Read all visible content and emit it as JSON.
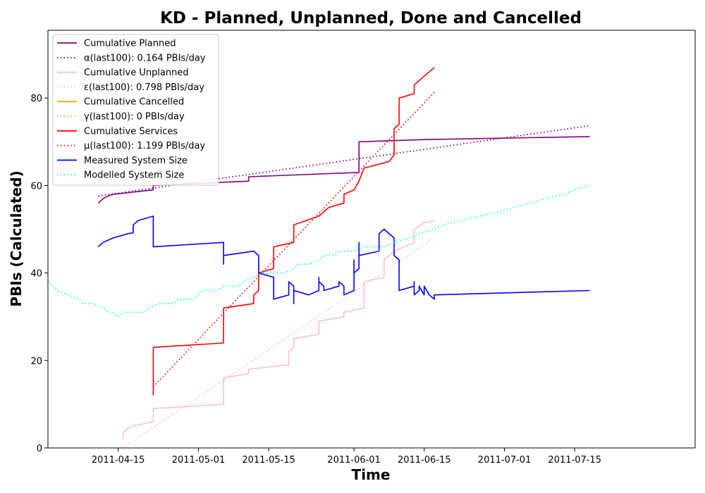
{
  "chart_data": {
    "type": "line",
    "title": "KD - Planned, Unplanned, Done  and Cancelled",
    "xlabel": "Time",
    "ylabel": "PBIs (Calculated)",
    "xlim": [
      "2011-04-01",
      "2011-08-08"
    ],
    "ylim": [
      0,
      95.5
    ],
    "x_ticks": [
      "2011-04-15",
      "2011-05-01",
      "2011-05-15",
      "2011-06-01",
      "2011-06-15",
      "2011-07-01",
      "2011-07-15"
    ],
    "y_ticks": [
      0,
      20,
      40,
      60,
      80
    ],
    "grid": false,
    "legend_position": "upper-left",
    "series": [
      {
        "name": "Cumulative Planned",
        "color": "#800080",
        "style": "solid",
        "points": [
          [
            "2011-04-11",
            56
          ],
          [
            "2011-04-12",
            57
          ],
          [
            "2011-04-13",
            57.6
          ],
          [
            "2011-04-14",
            58
          ],
          [
            "2011-04-22",
            59
          ],
          [
            "2011-04-22",
            60
          ],
          [
            "2011-05-11",
            61
          ],
          [
            "2011-05-11",
            62
          ],
          [
            "2011-06-02",
            63
          ],
          [
            "2011-06-02",
            70
          ],
          [
            "2011-06-15",
            70.5
          ],
          [
            "2011-07-18",
            71.2
          ]
        ]
      },
      {
        "name": "α(last100): 0.164 PBIs/day",
        "color": "#800080",
        "style": "dotted",
        "points": [
          [
            "2011-04-11",
            57.6
          ],
          [
            "2011-07-18",
            73.7
          ]
        ]
      },
      {
        "name": "Cumulative Unplanned",
        "color": "#ffc0cb",
        "style": "solid",
        "points": [
          [
            "2011-04-16",
            2
          ],
          [
            "2011-04-16",
            3.5
          ],
          [
            "2011-04-17",
            4.5
          ],
          [
            "2011-04-18",
            5
          ],
          [
            "2011-04-22",
            6
          ],
          [
            "2011-04-22",
            9
          ],
          [
            "2011-05-06",
            10
          ],
          [
            "2011-05-06",
            16
          ],
          [
            "2011-05-11",
            17
          ],
          [
            "2011-05-11",
            18
          ],
          [
            "2011-05-19",
            19
          ],
          [
            "2011-05-19",
            22
          ],
          [
            "2011-05-20",
            23
          ],
          [
            "2011-05-20",
            25
          ],
          [
            "2011-05-25",
            26
          ],
          [
            "2011-05-25",
            29
          ],
          [
            "2011-05-30",
            30
          ],
          [
            "2011-05-30",
            31
          ],
          [
            "2011-06-03",
            32
          ],
          [
            "2011-06-03",
            38
          ],
          [
            "2011-06-07",
            39
          ],
          [
            "2011-06-07",
            43
          ],
          [
            "2011-06-08",
            44
          ],
          [
            "2011-06-09",
            45
          ],
          [
            "2011-06-13",
            47
          ],
          [
            "2011-06-13",
            50
          ],
          [
            "2011-06-15",
            51.5
          ],
          [
            "2011-06-17",
            52
          ]
        ]
      },
      {
        "name": "ε(last100): 0.798 PBIs/day",
        "color": "#ffc0cb",
        "style": "dotted",
        "points": [
          [
            "2011-04-16",
            0
          ],
          [
            "2011-06-17",
            48
          ]
        ]
      },
      {
        "name": "Cumulative Cancelled",
        "color": "#ffa500",
        "style": "solid",
        "points": []
      },
      {
        "name": "γ(last100): 0 PBIs/day",
        "color": "#ffa500",
        "style": "dotted",
        "points": []
      },
      {
        "name": "Cumulative Services",
        "color": "#ff0000",
        "style": "solid",
        "points": [
          [
            "2011-04-22",
            12
          ],
          [
            "2011-04-22",
            20
          ],
          [
            "2011-04-22",
            23
          ],
          [
            "2011-05-06",
            24
          ],
          [
            "2011-05-06",
            31
          ],
          [
            "2011-05-06",
            32
          ],
          [
            "2011-05-12",
            33
          ],
          [
            "2011-05-12",
            35
          ],
          [
            "2011-05-13",
            36
          ],
          [
            "2011-05-13",
            40
          ],
          [
            "2011-05-16",
            41
          ],
          [
            "2011-05-16",
            46
          ],
          [
            "2011-05-20",
            47
          ],
          [
            "2011-05-20",
            51
          ],
          [
            "2011-05-25",
            53
          ],
          [
            "2011-05-27",
            55
          ],
          [
            "2011-05-30",
            56
          ],
          [
            "2011-05-30",
            58
          ],
          [
            "2011-06-01",
            59
          ],
          [
            "2011-06-02",
            61
          ],
          [
            "2011-06-03",
            64
          ],
          [
            "2011-06-08",
            65.5
          ],
          [
            "2011-06-09",
            67
          ],
          [
            "2011-06-09",
            73
          ],
          [
            "2011-06-10",
            74
          ],
          [
            "2011-06-10",
            80
          ],
          [
            "2011-06-13",
            81
          ],
          [
            "2011-06-13",
            83
          ],
          [
            "2011-06-15",
            85
          ],
          [
            "2011-06-17",
            87
          ]
        ]
      },
      {
        "name": "μ(last100): 1.199 PBIs/day",
        "color": "#ff0000",
        "style": "dotted",
        "points": [
          [
            "2011-04-22",
            14
          ],
          [
            "2011-06-17",
            81.3
          ]
        ]
      },
      {
        "name": "Measured System Size",
        "color": "#0000ff",
        "style": "solid",
        "points": [
          [
            "2011-04-11",
            46
          ],
          [
            "2011-04-12",
            47
          ],
          [
            "2011-04-14",
            48
          ],
          [
            "2011-04-17",
            49
          ],
          [
            "2011-04-18",
            49.2
          ],
          [
            "2011-04-18",
            51
          ],
          [
            "2011-04-19",
            52
          ],
          [
            "2011-04-22",
            53
          ],
          [
            "2011-04-22",
            46
          ],
          [
            "2011-05-06",
            47
          ],
          [
            "2011-05-06",
            42
          ],
          [
            "2011-05-06",
            44
          ],
          [
            "2011-05-12",
            45
          ],
          [
            "2011-05-13",
            44
          ],
          [
            "2011-05-13",
            40
          ],
          [
            "2011-05-16",
            39
          ],
          [
            "2011-05-16",
            34
          ],
          [
            "2011-05-19",
            35
          ],
          [
            "2011-05-19",
            38
          ],
          [
            "2011-05-20",
            37
          ],
          [
            "2011-05-20",
            33
          ],
          [
            "2011-05-20",
            36
          ],
          [
            "2011-05-23",
            35
          ],
          [
            "2011-05-25",
            36
          ],
          [
            "2011-05-25",
            39
          ],
          [
            "2011-05-25",
            38
          ],
          [
            "2011-05-26",
            37
          ],
          [
            "2011-05-26",
            36
          ],
          [
            "2011-05-29",
            37
          ],
          [
            "2011-05-29",
            38
          ],
          [
            "2011-05-30",
            37
          ],
          [
            "2011-05-30",
            35
          ],
          [
            "2011-06-01",
            36
          ],
          [
            "2011-06-01",
            43
          ],
          [
            "2011-06-01",
            40
          ],
          [
            "2011-06-02",
            41
          ],
          [
            "2011-06-02",
            44
          ],
          [
            "2011-06-02",
            47
          ],
          [
            "2011-06-02",
            44
          ],
          [
            "2011-06-06",
            45
          ],
          [
            "2011-06-06",
            49
          ],
          [
            "2011-06-07",
            50
          ],
          [
            "2011-06-09",
            48
          ],
          [
            "2011-06-09",
            44
          ],
          [
            "2011-06-10",
            43
          ],
          [
            "2011-06-10",
            36
          ],
          [
            "2011-06-13",
            37
          ],
          [
            "2011-06-13",
            38
          ],
          [
            "2011-06-13",
            35
          ],
          [
            "2011-06-14",
            36
          ],
          [
            "2011-06-14",
            37
          ],
          [
            "2011-06-15",
            35
          ],
          [
            "2011-06-15",
            36
          ],
          [
            "2011-06-15",
            37
          ],
          [
            "2011-06-16",
            35
          ],
          [
            "2011-06-17",
            34
          ],
          [
            "2011-06-17",
            35
          ],
          [
            "2011-07-18",
            36
          ]
        ]
      },
      {
        "name": "Modelled System Size",
        "color": "#00ffff",
        "style": "dotted",
        "points": [
          [
            "2011-04-01",
            38
          ],
          [
            "2011-04-03",
            36
          ],
          [
            "2011-04-05",
            35
          ],
          [
            "2011-04-07",
            34
          ],
          [
            "2011-04-08",
            33
          ],
          [
            "2011-04-10",
            33
          ],
          [
            "2011-04-12",
            32
          ],
          [
            "2011-04-13",
            31
          ],
          [
            "2011-04-14",
            31
          ],
          [
            "2011-04-15",
            30
          ],
          [
            "2011-04-16",
            31
          ],
          [
            "2011-04-20",
            31
          ],
          [
            "2011-04-21",
            32
          ],
          [
            "2011-04-23",
            33
          ],
          [
            "2011-04-26",
            33
          ],
          [
            "2011-04-27",
            34
          ],
          [
            "2011-04-30",
            34
          ],
          [
            "2011-05-01",
            35
          ],
          [
            "2011-05-02",
            36
          ],
          [
            "2011-05-05",
            36
          ],
          [
            "2011-05-06",
            37
          ],
          [
            "2011-05-09",
            37
          ],
          [
            "2011-05-10",
            38
          ],
          [
            "2011-05-12",
            39
          ],
          [
            "2011-05-14",
            40
          ],
          [
            "2011-05-18",
            40
          ],
          [
            "2011-05-20",
            41
          ],
          [
            "2011-05-21",
            42
          ],
          [
            "2011-05-23",
            42
          ],
          [
            "2011-05-25",
            43
          ],
          [
            "2011-05-26",
            44
          ],
          [
            "2011-05-28",
            44
          ],
          [
            "2011-05-29",
            45
          ],
          [
            "2011-06-01",
            45
          ],
          [
            "2011-06-03",
            46
          ],
          [
            "2011-06-07",
            46
          ],
          [
            "2011-06-09",
            47
          ],
          [
            "2011-06-12",
            48
          ],
          [
            "2011-06-14",
            49
          ],
          [
            "2011-06-17",
            50
          ],
          [
            "2011-06-19",
            51
          ],
          [
            "2011-06-22",
            52
          ],
          [
            "2011-06-26",
            53
          ],
          [
            "2011-06-30",
            54
          ],
          [
            "2011-07-03",
            55
          ],
          [
            "2011-07-06",
            56
          ],
          [
            "2011-07-09",
            57
          ],
          [
            "2011-07-13",
            58
          ],
          [
            "2011-07-15",
            59
          ],
          [
            "2011-07-18",
            60
          ]
        ]
      }
    ]
  }
}
